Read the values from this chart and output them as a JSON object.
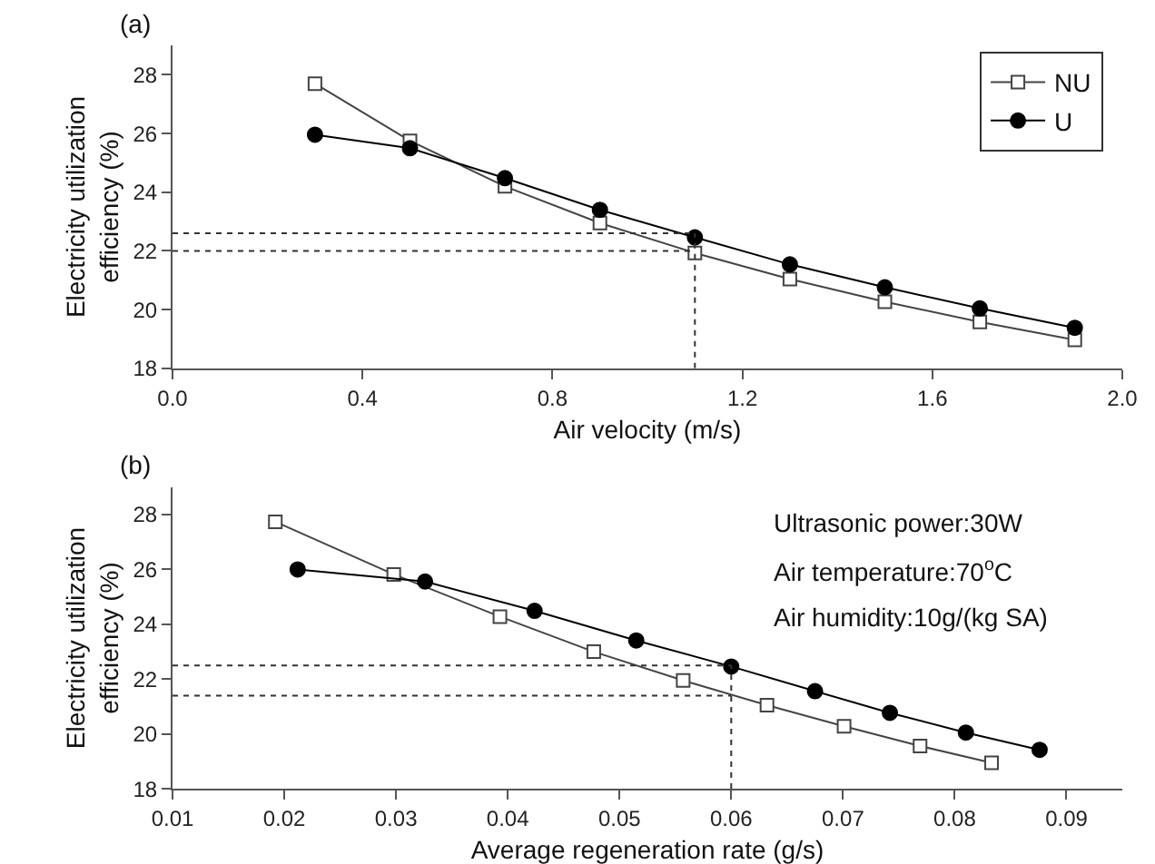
{
  "chart_data": [
    {
      "type": "line",
      "title": "(a)",
      "xlabel": "Air velocity (m/s)",
      "ylabel": "Electricity utilization efficiency (%)",
      "x": [
        0.3,
        0.5,
        0.7,
        0.9,
        1.1,
        1.3,
        1.5,
        1.7,
        1.9
      ],
      "xlim": [
        0,
        2.0
      ],
      "xticks": [
        {
          "value": 0,
          "label": "0.0"
        },
        0.4,
        0.8,
        1.2,
        1.6,
        {
          "value": 2,
          "label": "2.0"
        }
      ],
      "ylim": [
        18,
        29
      ],
      "yticks": [
        18,
        20,
        22,
        24,
        26,
        28
      ],
      "legend": "top right",
      "series": [
        {
          "name": "NU",
          "color": "#444444",
          "marker": "square",
          "values": [
            27.7,
            25.75,
            24.2,
            22.95,
            21.93,
            21.04,
            20.27,
            19.58,
            18.97
          ]
        },
        {
          "name": "U",
          "color": "#000000",
          "marker": "circle",
          "values": [
            25.96,
            25.5,
            24.48,
            23.4,
            22.46,
            21.54,
            20.76,
            20.04,
            19.38
          ]
        },
        {
          "color": "#333333",
          "marker": "none",
          "line_style": "dotted",
          "x": [
            0,
            1.1
          ],
          "values": [
            22.6,
            22.6
          ]
        },
        {
          "color": "#333333",
          "marker": "none",
          "line_style": "dotted",
          "x": [
            0,
            1.1
          ],
          "values": [
            22.0,
            22.0
          ]
        },
        {
          "color": "#333333",
          "marker": "none",
          "line_style": "dotted",
          "x": [
            1.1,
            1.1
          ],
          "values": [
            18,
            22.6
          ]
        }
      ]
    },
    {
      "type": "line",
      "title": "(b)",
      "xlabel": "Average regeneration rate (g/s)",
      "ylabel": "Electricity utilization efficiency (%)",
      "xlim": [
        0.01,
        0.095
      ],
      "xticks": [
        0.01,
        0.02,
        0.03,
        0.04,
        0.05,
        0.06,
        0.07,
        0.08,
        0.09
      ],
      "ylim": [
        18,
        29
      ],
      "yticks": [
        18,
        20,
        22,
        24,
        26,
        28
      ],
      "legend": false,
      "annotations": [
        "Ultrasonic power:30W",
        "Air temperature:70$^{o}$C",
        "Air humidity:10g/(kg SA)"
      ],
      "series": [
        {
          "color": "#444444",
          "marker": "square",
          "x": [
            0.0192,
            0.0298,
            0.0393,
            0.0477,
            0.0557,
            0.0632,
            0.0701,
            0.0769,
            0.0833
          ],
          "values": [
            27.74,
            25.82,
            24.28,
            23.0,
            21.95,
            21.05,
            20.28,
            19.56,
            18.95
          ]
        },
        {
          "color": "#000000",
          "marker": "circle",
          "x": [
            0.0212,
            0.0326,
            0.0424,
            0.0515,
            0.06,
            0.0675,
            0.0742,
            0.081,
            0.0876
          ],
          "values": [
            26.0,
            25.56,
            24.49,
            23.41,
            22.46,
            21.56,
            20.77,
            20.05,
            19.42
          ]
        },
        {
          "color": "#333333",
          "marker": "none",
          "line_style": "dotted",
          "x": [
            0.01,
            0.06
          ],
          "values": [
            22.5,
            22.5
          ]
        },
        {
          "color": "#333333",
          "marker": "none",
          "line_style": "dotted",
          "x": [
            0.01,
            0.06
          ],
          "values": [
            21.4,
            21.4
          ]
        },
        {
          "color": "#333333",
          "marker": "none",
          "line_style": "dotted",
          "x": [
            0.06,
            0.06
          ],
          "values": [
            18,
            22.5
          ]
        }
      ]
    }
  ]
}
